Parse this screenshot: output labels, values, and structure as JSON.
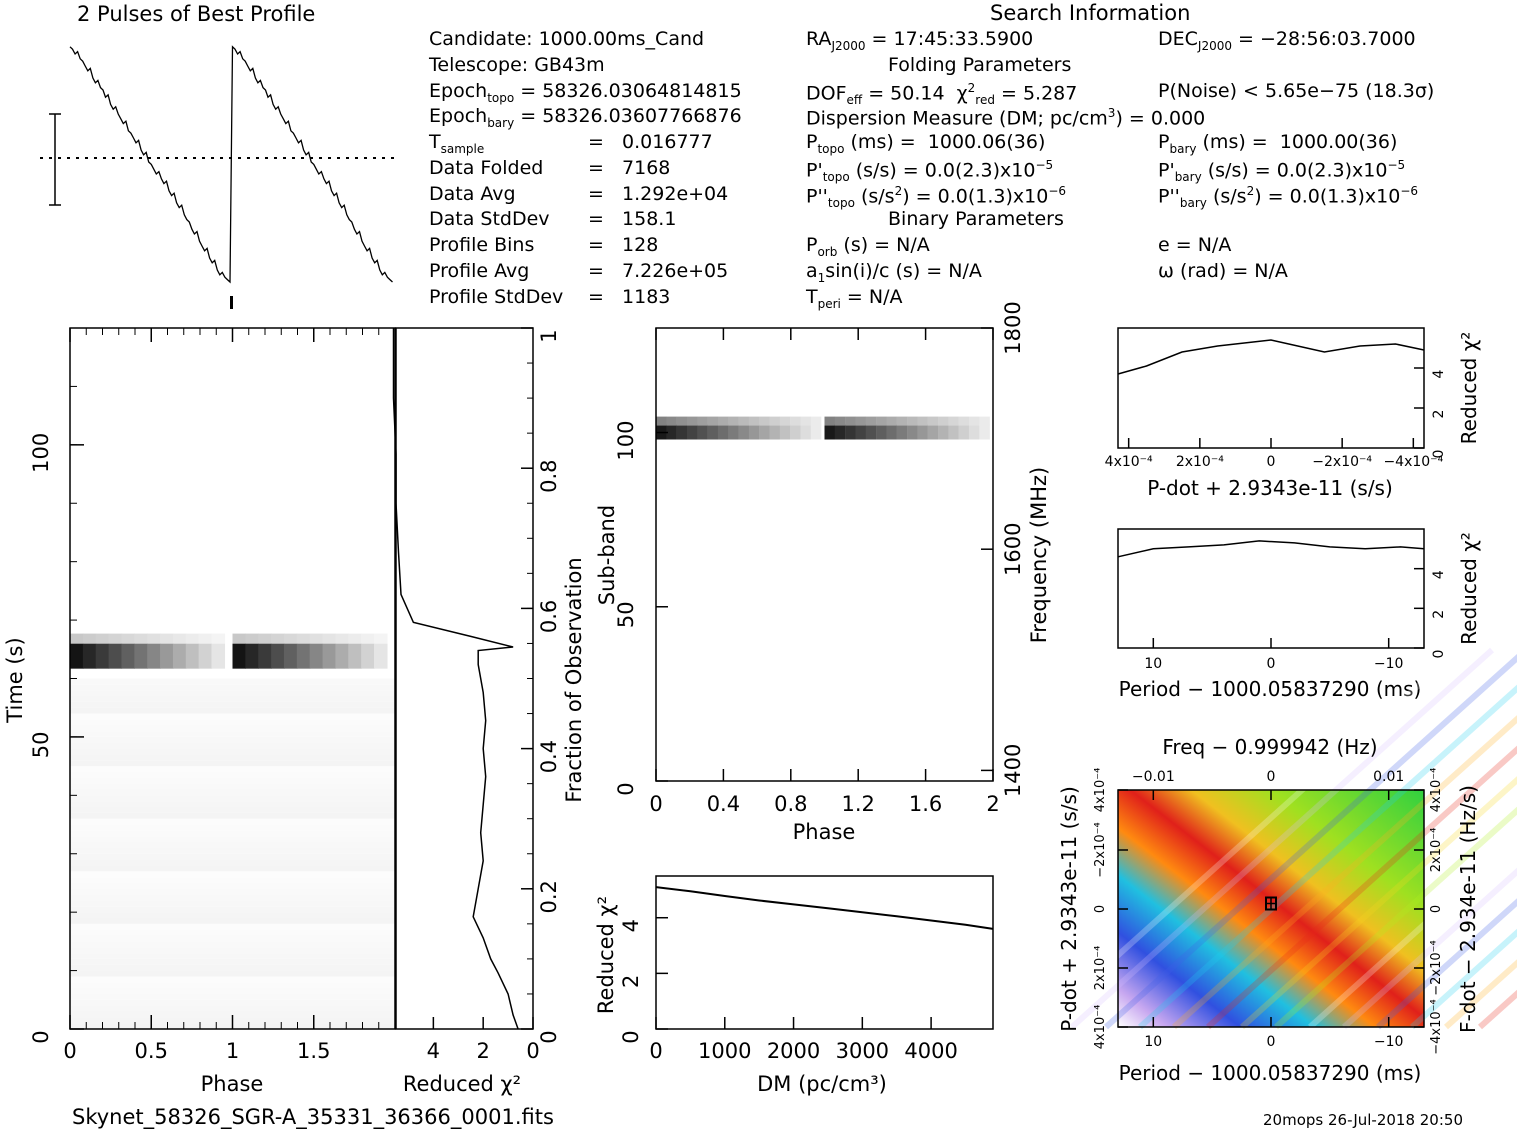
{
  "title": "2 Pulses of Best Profile",
  "search_header": "Search Information",
  "folding_header": "Folding Parameters",
  "binary_header": "Binary Parameters",
  "filename": "Skynet_58326_SGR-A_35331_36366_0001.fits",
  "footer_stamp": "20mops  26-Jul-2018 20:50",
  "info": {
    "candidate": "Candidate:  1000.00ms_Cand",
    "telescope": "Telescope:  GB43m",
    "epoch_topo": "58326.03064814815",
    "epoch_bary": "58326.03607766876",
    "t_sample": "0.016777",
    "data_folded": "7168",
    "data_avg": "1.292e+04",
    "data_stddev": "158.1",
    "profile_bins": "128",
    "profile_avg": "7.226e+05",
    "profile_stddev": "1183"
  },
  "search": {
    "ra": "17:45:33.5900",
    "dec": "−28:56:03.7000",
    "dof_eff": "50.14",
    "chi2_red": "5.287",
    "p_noise": "P(Noise) < 5.65e−75   (18.3σ)",
    "dm_line": "Dispersion Measure (DM; pc/cm",
    "dm_value": ") = 0.000",
    "p_topo": "1000.06(36)",
    "p_bary": "1000.00(36)",
    "pd_topo": "0.0(2.3)x10",
    "pd_bary": "0.0(2.3)x10",
    "pdd_topo": "0.0(1.3)x10",
    "pdd_bary": "0.0(1.3)x10",
    "p_orb": "N/A",
    "e": "N/A",
    "a1": "N/A",
    "omega": "N/A",
    "t_peri": "N/A"
  },
  "colors": {
    "ink": "#000000",
    "greyscale_peak": "#111111",
    "surface_red": "#e0201a",
    "surface_yellow": "#f0e020",
    "surface_green": "#30d040",
    "surface_blue": "#3050e0",
    "surface_violet": "#c8a8f0"
  },
  "chart_data": [
    {
      "name": "profile",
      "type": "line",
      "title": "2 Pulses of Best Profile",
      "x_range": [
        0,
        2
      ],
      "y": [
        0.98,
        0.97,
        0.95,
        0.96,
        0.93,
        0.92,
        0.9,
        0.88,
        0.89,
        0.85,
        0.83,
        0.84,
        0.81,
        0.8,
        0.77,
        0.78,
        0.74,
        0.72,
        0.73,
        0.7,
        0.68,
        0.66,
        0.67,
        0.63,
        0.62,
        0.6,
        0.58,
        0.59,
        0.55,
        0.53,
        0.54,
        0.5,
        0.49,
        0.47,
        0.45,
        0.46,
        0.43,
        0.41,
        0.42,
        0.38,
        0.36,
        0.37,
        0.33,
        0.31,
        0.32,
        0.28,
        0.26,
        0.25,
        0.22,
        0.2,
        0.21,
        0.17,
        0.15,
        0.13,
        0.14,
        0.1,
        0.08,
        0.09,
        0.05,
        0.03,
        0.04,
        0.02,
        0.01,
        0.0
      ],
      "errorbar_label": "±1σ"
    },
    {
      "name": "time-phase",
      "type": "heatmap",
      "xlabel": "Phase",
      "ylabel": "Time (s)",
      "x_ticks": [
        "0",
        "0.5",
        "1",
        "1.5"
      ],
      "y_ticks": [
        "0",
        "50",
        "100"
      ],
      "x_range": [
        0,
        2
      ],
      "y_range": [
        0,
        120
      ],
      "pulse_band_time": [
        61,
        67
      ]
    },
    {
      "name": "chi2-vs-time",
      "type": "line",
      "xlabel": "Reduced χ²",
      "ylabel_right": "Fraction of Observation",
      "x_ticks": [
        "4",
        "2",
        "0"
      ],
      "x_range": [
        5.5,
        0
      ],
      "y_ticks": [
        "0",
        "0.2",
        "0.4",
        "0.6",
        "0.8",
        "1"
      ],
      "fraction": [
        0.0,
        0.02,
        0.05,
        0.08,
        0.1,
        0.13,
        0.16,
        0.2,
        0.24,
        0.28,
        0.32,
        0.36,
        0.4,
        0.44,
        0.48,
        0.52,
        0.54,
        0.545,
        0.56,
        0.58,
        0.62,
        0.68,
        0.75,
        0.82,
        0.9,
        1.0
      ],
      "chi2": [
        0.6,
        0.8,
        1.0,
        1.4,
        1.7,
        2.0,
        2.4,
        2.2,
        2.0,
        2.1,
        2.0,
        1.9,
        2.0,
        1.9,
        2.0,
        2.2,
        2.2,
        0.8,
        2.5,
        4.8,
        5.3,
        5.4,
        5.5,
        5.5,
        5.6,
        5.6
      ]
    },
    {
      "name": "subband-phase",
      "type": "heatmap",
      "xlabel": "Phase",
      "ylabel": "Sub-band",
      "ylabel_right": "Frequency (MHz)",
      "x_ticks": [
        "0",
        "0.4",
        "0.8",
        "1.2",
        "1.6",
        "2"
      ],
      "y_ticks": [
        "0",
        "50",
        "100"
      ],
      "y_right_ticks": [
        "1400",
        "1600",
        "1800"
      ],
      "x_range": [
        0,
        2
      ],
      "y_range": [
        0,
        130
      ],
      "pulse_band_subband": [
        98,
        104
      ]
    },
    {
      "name": "chi2-vs-dm",
      "type": "line",
      "xlabel": "DM (pc/cm³)",
      "ylabel": "Reduced χ²",
      "x_ticks": [
        "0",
        "1000",
        "2000",
        "3000",
        "4000"
      ],
      "y_ticks": [
        "0",
        "2",
        "4"
      ],
      "x_range": [
        0,
        4900
      ],
      "y_range": [
        0,
        5.5
      ],
      "x": [
        0,
        500,
        1000,
        1500,
        2000,
        2500,
        3000,
        3500,
        4000,
        4500,
        4900
      ],
      "y": [
        5.1,
        4.95,
        4.78,
        4.62,
        4.48,
        4.34,
        4.2,
        4.05,
        3.9,
        3.75,
        3.6
      ]
    },
    {
      "name": "chi2-vs-pdot",
      "type": "line",
      "xlabel": "P-dot + 2.9343e-11 (s/s)",
      "ylabel": "Reduced χ²",
      "x_ticks": [
        "4x10⁻⁴",
        "2x10⁻⁴",
        "0",
        "−2x10⁻⁴",
        "−4x10⁻⁴"
      ],
      "y_ticks": [
        "0",
        "2",
        "4"
      ],
      "x_range": [
        0.00043,
        -0.00043
      ],
      "y_range": [
        0,
        6
      ],
      "x": [
        0.00043,
        0.00035,
        0.00025,
        0.00015,
        5e-05,
        0,
        -5e-05,
        -0.00015,
        -0.00025,
        -0.00035,
        -0.00043
      ],
      "y": [
        3.7,
        4.1,
        4.8,
        5.1,
        5.3,
        5.4,
        5.2,
        4.8,
        5.1,
        5.2,
        4.9
      ]
    },
    {
      "name": "chi2-vs-period",
      "type": "line",
      "xlabel": "Period − 1000.05837290 (ms)",
      "ylabel": "Reduced χ²",
      "x_ticks": [
        "10",
        "0",
        "−10"
      ],
      "y_ticks": [
        "0",
        "2",
        "4"
      ],
      "x_range": [
        13,
        -13
      ],
      "y_range": [
        0,
        6
      ],
      "x": [
        13,
        10,
        7,
        4,
        1,
        -2,
        -5,
        -8,
        -11,
        -13
      ],
      "y": [
        4.6,
        5.0,
        5.1,
        5.2,
        5.4,
        5.3,
        5.1,
        5.0,
        5.1,
        5.0
      ]
    },
    {
      "name": "ppdot-plane",
      "type": "heatmap",
      "title": "Freq − 0.999942 (Hz)",
      "xlabel": "Period − 1000.05837290 (ms)",
      "ylabel": "P-dot + 2.9343e-11 (s/s)",
      "ylabel_right": "F-dot − 2.934e-11 (Hz/s)",
      "x_ticks": [
        "10",
        "0",
        "−10"
      ],
      "top_ticks": [
        "−0.01",
        "0",
        "0.01"
      ],
      "y_ticks": [
        "4x10⁻⁴",
        "−2x10⁻⁴",
        "0",
        "2x10⁻⁴",
        "4x10⁻⁴"
      ],
      "y_right_ticks": [
        "−4x10⁻⁴",
        "−2x10⁻⁴",
        "0",
        "2x10⁻⁴",
        "4x10⁻⁴"
      ],
      "best_marker": [
        0,
        0
      ]
    }
  ]
}
